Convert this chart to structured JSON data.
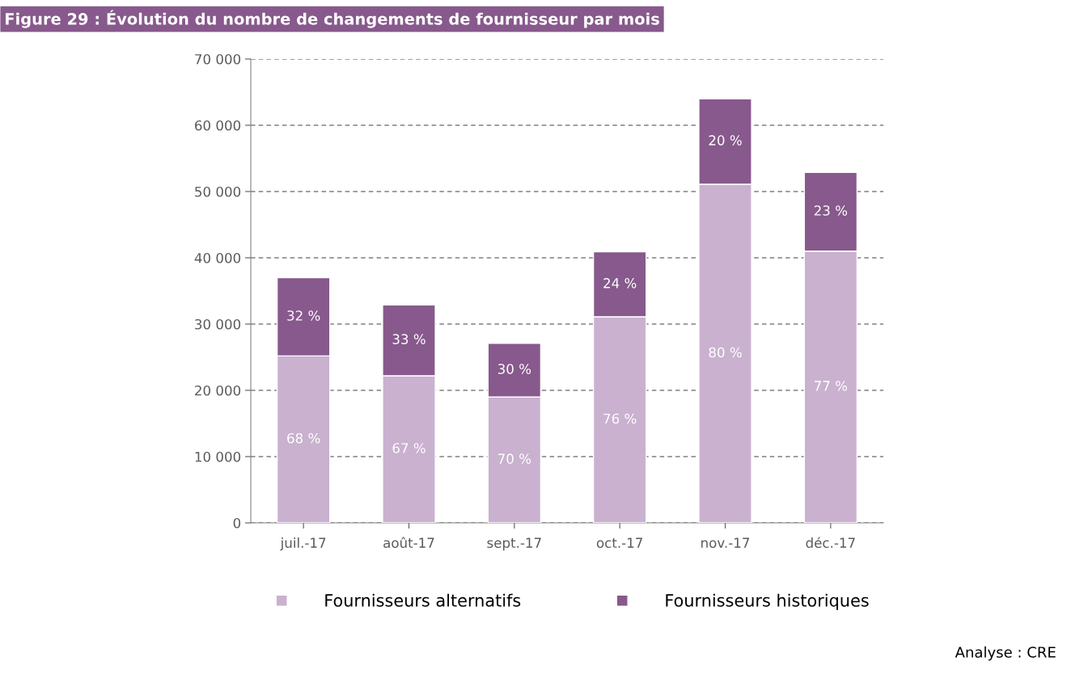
{
  "chart_data": {
    "type": "bar",
    "title": "Figure 29 : Évolution du nombre de changements de fournisseur par mois",
    "categories": [
      "juil.-17",
      "août-17",
      "sept.-17",
      "oct.-17",
      "nov.-17",
      "déc.-17"
    ],
    "stacked": true,
    "series": [
      {
        "name": "Fournisseurs alternatifs",
        "color": "#c9b1cf",
        "values": [
          25200,
          22200,
          19000,
          31100,
          51100,
          41000
        ]
      },
      {
        "name": "Fournisseurs historiques",
        "color": "#87598c",
        "values": [
          11800,
          10700,
          8100,
          9800,
          12900,
          11900
        ]
      }
    ],
    "ylim": [
      0,
      70000
    ],
    "yticks": [
      {
        "value": 0,
        "label": "0"
      },
      {
        "value": 10000,
        "label": "10 000"
      },
      {
        "value": 20000,
        "label": "20 000"
      },
      {
        "value": 30000,
        "label": "30 000"
      },
      {
        "value": 40000,
        "label": "40 000"
      },
      {
        "value": 50000,
        "label": "50 000"
      },
      {
        "value": 60000,
        "label": "60 000"
      },
      {
        "value": 70000,
        "label": "70 000"
      }
    ],
    "grid": "y",
    "legend": "bottom",
    "annotations": [
      "68 %",
      "67 %",
      "70 %",
      "76 %",
      "80 %",
      "77 %",
      "32 %",
      "33 %",
      "30 %",
      "24 %",
      "20 %",
      "23 %",
      "Analyse : CRE"
    ]
  }
}
